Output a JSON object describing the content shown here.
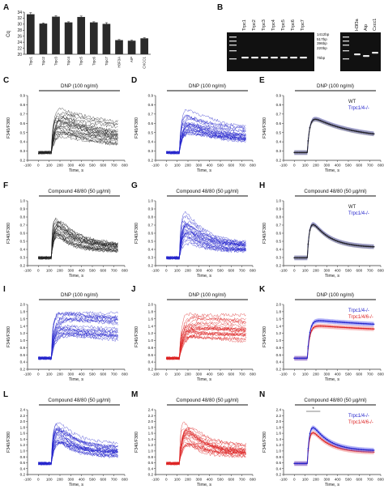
{
  "colors": {
    "black": "#222222",
    "blue": "#2323cc",
    "red": "#dd2222",
    "purple": "#8a1c4a",
    "band_blue": "#6e6ef0",
    "band_red": "#f08a8a",
    "bar": "#2a2a2a",
    "gel_bg": "#111111",
    "gel_band": "#e8e8e8"
  },
  "panel_a": {
    "letter": "A",
    "chart_data": {
      "type": "bar",
      "categories": [
        "Trpc1",
        "Trpc2",
        "Trpc3",
        "Trpc4",
        "Trpc5",
        "Trpc6",
        "Trpc7",
        "H3F3A",
        "AIP",
        "CXCC1"
      ],
      "values": [
        33.3,
        30.2,
        32.5,
        30.6,
        32.4,
        30.6,
        30.1,
        24.7,
        24.5,
        25.3
      ],
      "errors": [
        0.5,
        0.2,
        0.3,
        0.2,
        0.3,
        0.2,
        0.4,
        0.2,
        0.2,
        0.2
      ],
      "ylabel": "Cq",
      "ylim": [
        20,
        34
      ],
      "yticks": [
        "20",
        "22",
        "24",
        "26",
        "28",
        "30",
        "32",
        "34"
      ]
    }
  },
  "panel_b": {
    "letter": "B",
    "lanes_left": [
      "Trpc1",
      "Trpc2",
      "Trpc3",
      "Trpc4",
      "Trpc5",
      "Trpc6",
      "Trpc7"
    ],
    "lanes_right": [
      "H3f3a",
      "Aip",
      "Cxcc1"
    ],
    "ladder_sizes": [
      "1412bp",
      "517bp",
      "396bp",
      "220bp",
      "75bp"
    ]
  },
  "trace_panels": [
    {
      "letter": "C",
      "kind": "traces",
      "color": "black",
      "stim": "DNP (100 ng/ml)",
      "ylabel": "F340/F380",
      "xlabel": "Time, s",
      "yticks": [
        "0.2",
        "0.3",
        "0.4",
        "0.5",
        "0.6",
        "0.7",
        "0.8",
        "0.9"
      ],
      "xticks": [
        "-100",
        "0",
        "100",
        "200",
        "300",
        "400",
        "500",
        "600",
        "700",
        "800"
      ]
    },
    {
      "letter": "D",
      "kind": "traces",
      "color": "blue",
      "stim": "DNP (100 ng/ml)",
      "ylabel": "F340/F380",
      "xlabel": "Time, s",
      "yticks": [
        "0.2",
        "0.3",
        "0.4",
        "0.5",
        "0.6",
        "0.7",
        "0.8",
        "0.9"
      ],
      "xticks": [
        "-100",
        "0",
        "100",
        "200",
        "300",
        "400",
        "500",
        "600",
        "700",
        "800"
      ]
    },
    {
      "letter": "E",
      "kind": "mean",
      "stim": "DNP (100 ng/ml)",
      "ylabel": "F340/F380",
      "xlabel": "Time, s",
      "yticks": [
        "0.2",
        "0.3",
        "0.4",
        "0.5",
        "0.6",
        "0.7",
        "0.8",
        "0.9"
      ],
      "xticks": [
        "-100",
        "0",
        "100",
        "200",
        "300",
        "400",
        "500",
        "600",
        "700",
        "800"
      ],
      "legend": [
        {
          "label": "WT",
          "color": "black"
        },
        {
          "label": "Trpc1/4-/-",
          "color": "blue"
        }
      ]
    },
    {
      "letter": "F",
      "kind": "traces",
      "color": "black",
      "stim": "Compound 48/80 (50 µg/ml)",
      "ylabel": "F340/F380",
      "xlabel": "Time, s",
      "yticks": [
        "0.2",
        "0.3",
        "0.4",
        "0.5",
        "0.6",
        "0.7",
        "0.8",
        "0.9",
        "1.0"
      ],
      "xticks": [
        "-100",
        "0",
        "100",
        "200",
        "300",
        "400",
        "500",
        "600",
        "700",
        "800"
      ]
    },
    {
      "letter": "G",
      "kind": "traces",
      "color": "blue",
      "stim": "Compound 48/80 (50 µg/ml)",
      "ylabel": "F340/F380",
      "xlabel": "Time, s",
      "yticks": [
        "0.2",
        "0.3",
        "0.4",
        "0.5",
        "0.6",
        "0.7",
        "0.8",
        "0.9",
        "1.0"
      ],
      "xticks": [
        "-100",
        "0",
        "100",
        "200",
        "300",
        "400",
        "500",
        "600",
        "700",
        "800"
      ]
    },
    {
      "letter": "H",
      "kind": "mean",
      "stim": "Compound 48/80 (50 µg/ml)",
      "ylabel": "F340/F380",
      "xlabel": "Time, s",
      "yticks": [
        "0.2",
        "0.3",
        "0.4",
        "0.5",
        "0.6",
        "0.7",
        "0.8",
        "0.9",
        "1.0"
      ],
      "xticks": [
        "-100",
        "0",
        "100",
        "200",
        "300",
        "400",
        "500",
        "600",
        "700",
        "800"
      ],
      "legend": [
        {
          "label": "WT",
          "color": "black"
        },
        {
          "label": "Trpc1/4-/-",
          "color": "blue"
        }
      ]
    },
    {
      "letter": "I",
      "kind": "traces",
      "color": "blue",
      "stim": "DNP (100 ng/ml)",
      "ylabel": "F340/F380",
      "xlabel": "Time, s",
      "yticks": [
        "0.2",
        "0.4",
        "0.6",
        "0.8",
        "1.0",
        "1.2",
        "1.4",
        "1.6",
        "1.8",
        "2.0"
      ],
      "xticks": [
        "-100",
        "0",
        "100",
        "200",
        "300",
        "400",
        "500",
        "600",
        "700",
        "800"
      ]
    },
    {
      "letter": "J",
      "kind": "traces",
      "color": "red",
      "stim": "DNP (100 ng/ml)",
      "ylabel": "F340/F380",
      "xlabel": "Time, s",
      "yticks": [
        "0.2",
        "0.4",
        "0.6",
        "0.8",
        "1.0",
        "1.2",
        "1.4",
        "1.6",
        "1.8",
        "2.0"
      ],
      "xticks": [
        "-100",
        "0",
        "100",
        "200",
        "300",
        "400",
        "500",
        "600",
        "700",
        "800"
      ]
    },
    {
      "letter": "K",
      "kind": "mean",
      "stim": "DNP (100 ng/ml)",
      "ylabel": "F340/F380",
      "xlabel": "Time, s",
      "yticks": [
        "0.2",
        "0.4",
        "0.6",
        "0.8",
        "1.0",
        "1.2",
        "1.4",
        "1.6",
        "1.8",
        "2.0"
      ],
      "xticks": [
        "-100",
        "0",
        "100",
        "200",
        "300",
        "400",
        "500",
        "600",
        "700",
        "800"
      ],
      "legend": [
        {
          "label": "Trpc1/4-/-",
          "color": "blue"
        },
        {
          "label": "Trpc1/4/6-/-",
          "color": "red"
        }
      ]
    },
    {
      "letter": "L",
      "kind": "traces",
      "color": "blue",
      "stim": "Compound 48/80 (50 µg/ml)",
      "ylabel": "F340/F380",
      "xlabel": "Time, s",
      "yticks": [
        "0.2",
        "0.4",
        "0.6",
        "0.8",
        "1.0",
        "1.2",
        "1.4",
        "1.6",
        "1.8",
        "2.0",
        "2.2",
        "2.4"
      ],
      "xticks": [
        "-100",
        "0",
        "100",
        "200",
        "300",
        "400",
        "500",
        "600",
        "700",
        "800"
      ]
    },
    {
      "letter": "M",
      "kind": "traces",
      "color": "red",
      "stim": "Compound 48/80 (50 µg/ml)",
      "ylabel": "F340/F380",
      "xlabel": "Time, s",
      "yticks": [
        "0.2",
        "0.4",
        "0.6",
        "0.8",
        "1.0",
        "1.2",
        "1.4",
        "1.6",
        "1.8",
        "2.0",
        "2.2",
        "2.4"
      ],
      "xticks": [
        "-100",
        "0",
        "100",
        "200",
        "300",
        "400",
        "500",
        "600",
        "700",
        "800"
      ]
    },
    {
      "letter": "N",
      "kind": "mean",
      "stim": "Compound 48/80 (50 µg/ml)",
      "ylabel": "F340/F380",
      "xlabel": "Time, s",
      "yticks": [
        "0.2",
        "0.4",
        "0.6",
        "0.8",
        "1.0",
        "1.2",
        "1.4",
        "1.6",
        "1.8",
        "2.0",
        "2.2",
        "2.4"
      ],
      "xticks": [
        "-100",
        "0",
        "100",
        "200",
        "300",
        "400",
        "500",
        "600",
        "700",
        "800"
      ],
      "legend": [
        {
          "label": "Trpc1/4-/-",
          "color": "blue"
        },
        {
          "label": "Trpc1/4/6-/-",
          "color": "red"
        }
      ],
      "annotation": "*"
    }
  ]
}
